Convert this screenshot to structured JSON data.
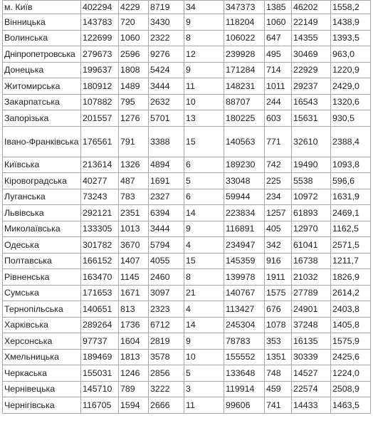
{
  "table": {
    "rows": [
      {
        "region": "м. Київ",
        "c1": "402294",
        "c2": "4229",
        "c3": "8719",
        "c4": "34",
        "c5": "347373",
        "c6": "1385",
        "c7": "46202",
        "c8": "1558,2"
      },
      {
        "region": "Вінницька",
        "c1": "143783",
        "c2": "720",
        "c3": "3430",
        "c4": "9",
        "c5": "118204",
        "c6": "1060",
        "c7": "22149",
        "c8": "1438,9"
      },
      {
        "region": "Волинська",
        "c1": "122699",
        "c2": "1060",
        "c3": "2322",
        "c4": "8",
        "c5": "106022",
        "c6": "647",
        "c7": "14355",
        "c8": "1393,5"
      },
      {
        "region": "Дніпропетровська",
        "c1": "279673",
        "c2": "2596",
        "c3": "9276",
        "c4": "12",
        "c5": "239928",
        "c6": "495",
        "c7": "30469",
        "c8": "963,0"
      },
      {
        "region": "Донецька",
        "c1": "199637",
        "c2": "1808",
        "c3": "5424",
        "c4": "9",
        "c5": "171284",
        "c6": "714",
        "c7": "22929",
        "c8": "1220,9"
      },
      {
        "region": "Житомирська",
        "c1": "180912",
        "c2": "1489",
        "c3": "3444",
        "c4": "11",
        "c5": "148231",
        "c6": "1011",
        "c7": "29237",
        "c8": "2429,0"
      },
      {
        "region": "Закарпатська",
        "c1": "107882",
        "c2": "795",
        "c3": "2632",
        "c4": "10",
        "c5": "88707",
        "c6": "244",
        "c7": "16543",
        "c8": "1320,6"
      },
      {
        "region": "Запорізька",
        "c1": "201557",
        "c2": "1276",
        "c3": "5701",
        "c4": "13",
        "c5": "180225",
        "c6": "603",
        "c7": "15631",
        "c8": "930,5"
      },
      {
        "region": "Івано-Франківська",
        "c1": "176561",
        "c2": "791",
        "c3": "3388",
        "c4": "15",
        "c5": "140563",
        "c6": "771",
        "c7": "32610",
        "c8": "2388,4"
      },
      {
        "region": "Київська",
        "c1": "213614",
        "c2": "1326",
        "c3": "4894",
        "c4": "6",
        "c5": "189230",
        "c6": "742",
        "c7": "19490",
        "c8": "1093,8"
      },
      {
        "region": "Кіровоградська",
        "c1": "40277",
        "c2": "487",
        "c3": "1691",
        "c4": "5",
        "c5": "33048",
        "c6": "225",
        "c7": "5538",
        "c8": "596,6"
      },
      {
        "region": "Луганська",
        "c1": "73243",
        "c2": "783",
        "c3": "2327",
        "c4": "6",
        "c5": "59944",
        "c6": "234",
        "c7": "10972",
        "c8": "1631,9"
      },
      {
        "region": "Львівська",
        "c1": "292121",
        "c2": "2351",
        "c3": "6394",
        "c4": "14",
        "c5": "223834",
        "c6": "1257",
        "c7": "61893",
        "c8": "2469,1"
      },
      {
        "region": "Миколаївська",
        "c1": "133305",
        "c2": "1013",
        "c3": "3444",
        "c4": "9",
        "c5": "116891",
        "c6": "405",
        "c7": "12970",
        "c8": "1162,5"
      },
      {
        "region": "Одеська",
        "c1": "301782",
        "c2": "3670",
        "c3": "5794",
        "c4": "4",
        "c5": "234947",
        "c6": "342",
        "c7": "61041",
        "c8": "2571,5"
      },
      {
        "region": "Полтавська",
        "c1": "166152",
        "c2": "1407",
        "c3": "4055",
        "c4": "15",
        "c5": "145359",
        "c6": "916",
        "c7": "16738",
        "c8": "1211,7"
      },
      {
        "region": "Рівненська",
        "c1": "163470",
        "c2": "1145",
        "c3": "2460",
        "c4": "8",
        "c5": "139978",
        "c6": "1911",
        "c7": "21032",
        "c8": "1826,9"
      },
      {
        "region": "Сумська",
        "c1": "171653",
        "c2": "1671",
        "c3": "3097",
        "c4": "21",
        "c5": "140767",
        "c6": "1575",
        "c7": "27789",
        "c8": "2614,2"
      },
      {
        "region": "Тернопільська",
        "c1": "140651",
        "c2": "813",
        "c3": "2323",
        "c4": "4",
        "c5": "113427",
        "c6": "676",
        "c7": "24901",
        "c8": "2403,8"
      },
      {
        "region": "Харківська",
        "c1": "289264",
        "c2": "1736",
        "c3": "6712",
        "c4": "14",
        "c5": "245304",
        "c6": "1078",
        "c7": "37248",
        "c8": "1405,8"
      },
      {
        "region": "Херсонська",
        "c1": "97737",
        "c2": "1604",
        "c3": "2819",
        "c4": "9",
        "c5": "78783",
        "c6": "353",
        "c7": "16135",
        "c8": "1575,9"
      },
      {
        "region": "Хмельницька",
        "c1": "189469",
        "c2": "1813",
        "c3": "3578",
        "c4": "10",
        "c5": "155552",
        "c6": "1351",
        "c7": "30339",
        "c8": "2425,6"
      },
      {
        "region": "Черкаська",
        "c1": "155031",
        "c2": "1246",
        "c3": "2856",
        "c4": "5",
        "c5": "133648",
        "c6": "748",
        "c7": "14527",
        "c8": "1224,0"
      },
      {
        "region": "Чернівецька",
        "c1": "145710",
        "c2": "789",
        "c3": "3222",
        "c4": "3",
        "c5": "119914",
        "c6": "459",
        "c7": "22574",
        "c8": "2508,9"
      },
      {
        "region": "Чернігівська",
        "c1": "116705",
        "c2": "1594",
        "c3": "2666",
        "c4": "11",
        "c5": "99606",
        "c6": "741",
        "c7": "14433",
        "c8": "1463,5"
      }
    ]
  }
}
